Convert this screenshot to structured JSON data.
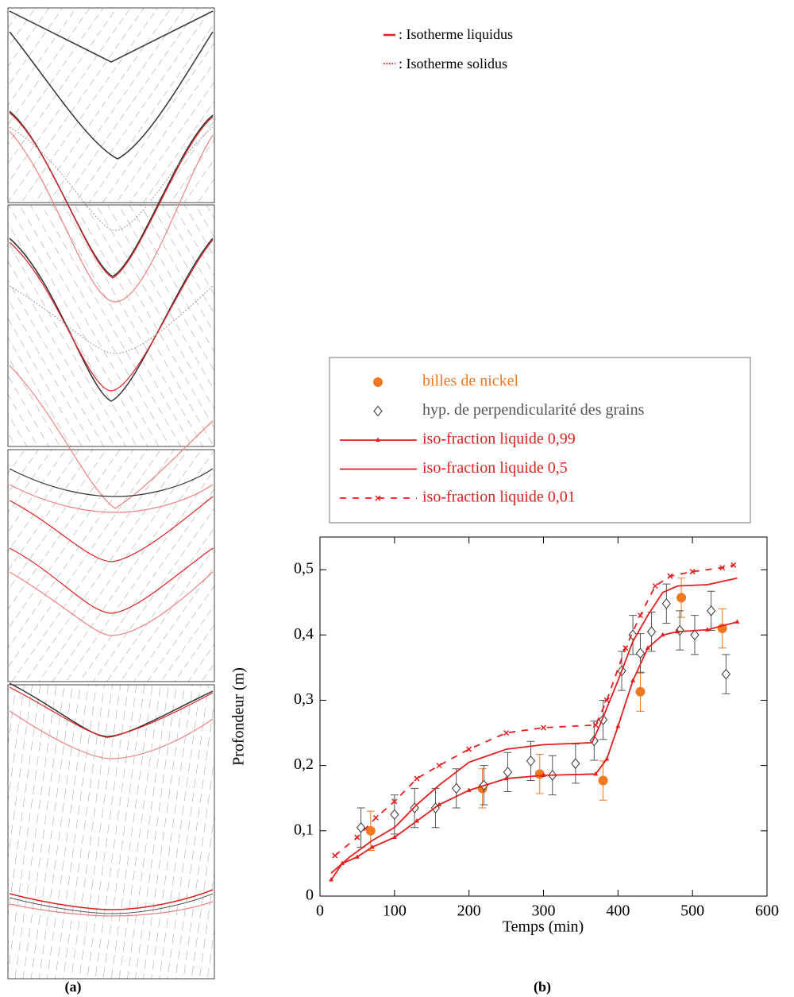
{
  "figure": {
    "legend_a": [
      {
        "label": ": Isotherme liquidus",
        "style": "solid",
        "color": "#e41e1e"
      },
      {
        "label": ": Isotherme solidus",
        "style": "dotted",
        "color": "#e41e1e"
      }
    ],
    "label_a": "(a)",
    "label_b": "(b)"
  },
  "chart_data": {
    "type": "line",
    "xlabel": "Temps (min)",
    "ylabel": "Profondeur (m)",
    "xlim": [
      0,
      600
    ],
    "xticks": [
      0,
      100,
      200,
      300,
      400,
      500,
      600
    ],
    "ylim": [
      0,
      0.55
    ],
    "yticks": [
      0,
      {
        "value": 0.1,
        "label": "0,1"
      },
      {
        "value": 0.2,
        "label": "0,2"
      },
      {
        "value": 0.3,
        "label": "0,3"
      },
      {
        "value": 0.4,
        "label": "0,4"
      },
      {
        "value": 0.5,
        "label": "0,5"
      }
    ],
    "grid": false,
    "series": [
      {
        "name": "billes de nickel",
        "color": "#f07820",
        "kind": "scatter",
        "marker": "circle",
        "x": [
          68,
          218,
          295,
          380,
          430,
          485,
          540
        ],
        "values": [
          0.1,
          0.165,
          0.187,
          0.177,
          0.313,
          0.457,
          0.41
        ],
        "errors": [
          0.03,
          0.03,
          0.03,
          0.03,
          0.03,
          0.03,
          0.03
        ]
      },
      {
        "name": "hyp. de perpendicularité des grains",
        "color": "#555555",
        "kind": "scatter",
        "marker": "diamond",
        "x": [
          55,
          100,
          127,
          155,
          183,
          220,
          252,
          283,
          312,
          343,
          368,
          380,
          405,
          420,
          430,
          445,
          465,
          483,
          503,
          525,
          545
        ],
        "values": [
          0.105,
          0.125,
          0.135,
          0.135,
          0.165,
          0.17,
          0.19,
          0.207,
          0.185,
          0.203,
          0.238,
          0.27,
          0.345,
          0.4,
          0.372,
          0.405,
          0.448,
          0.407,
          0.4,
          0.437,
          0.34
        ],
        "errors": [
          0.03,
          0.03,
          0.03,
          0.03,
          0.03,
          0.03,
          0.03,
          0.03,
          0.03,
          0.03,
          0.03,
          0.03,
          0.03,
          0.03,
          0.03,
          0.03,
          0.03,
          0.03,
          0.03,
          0.03,
          0.03
        ]
      },
      {
        "name": "iso-fraction liquide 0,99",
        "color": "#e41e1e",
        "kind": "line",
        "line": "solid",
        "marker": "triangle",
        "x": [
          15,
          30,
          50,
          70,
          100,
          130,
          160,
          200,
          250,
          300,
          370,
          385,
          400,
          420,
          440,
          460,
          480,
          520,
          560
        ],
        "values": [
          0.025,
          0.05,
          0.06,
          0.075,
          0.09,
          0.115,
          0.14,
          0.162,
          0.18,
          0.185,
          0.187,
          0.21,
          0.26,
          0.33,
          0.38,
          0.4,
          0.405,
          0.408,
          0.42
        ]
      },
      {
        "name": "iso-fraction liquide 0,5",
        "color": "#e41e1e",
        "kind": "line",
        "line": "solid",
        "marker": "none",
        "x": [
          15,
          40,
          70,
          100,
          130,
          160,
          200,
          250,
          300,
          365,
          375,
          400,
          420,
          440,
          460,
          480,
          520,
          560
        ],
        "values": [
          0.035,
          0.06,
          0.085,
          0.105,
          0.14,
          0.17,
          0.205,
          0.225,
          0.232,
          0.235,
          0.26,
          0.33,
          0.39,
          0.43,
          0.465,
          0.475,
          0.477,
          0.487
        ]
      },
      {
        "name": "iso-fraction liquide 0,01",
        "color": "#e41e1e",
        "kind": "line",
        "line": "dashed",
        "marker": "cross",
        "x": [
          20,
          50,
          75,
          100,
          130,
          160,
          200,
          250,
          300,
          370,
          385,
          410,
          430,
          450,
          470,
          500,
          540,
          555
        ],
        "values": [
          0.062,
          0.09,
          0.12,
          0.145,
          0.18,
          0.2,
          0.225,
          0.25,
          0.258,
          0.262,
          0.3,
          0.38,
          0.43,
          0.475,
          0.49,
          0.497,
          0.503,
          0.507
        ]
      }
    ]
  }
}
